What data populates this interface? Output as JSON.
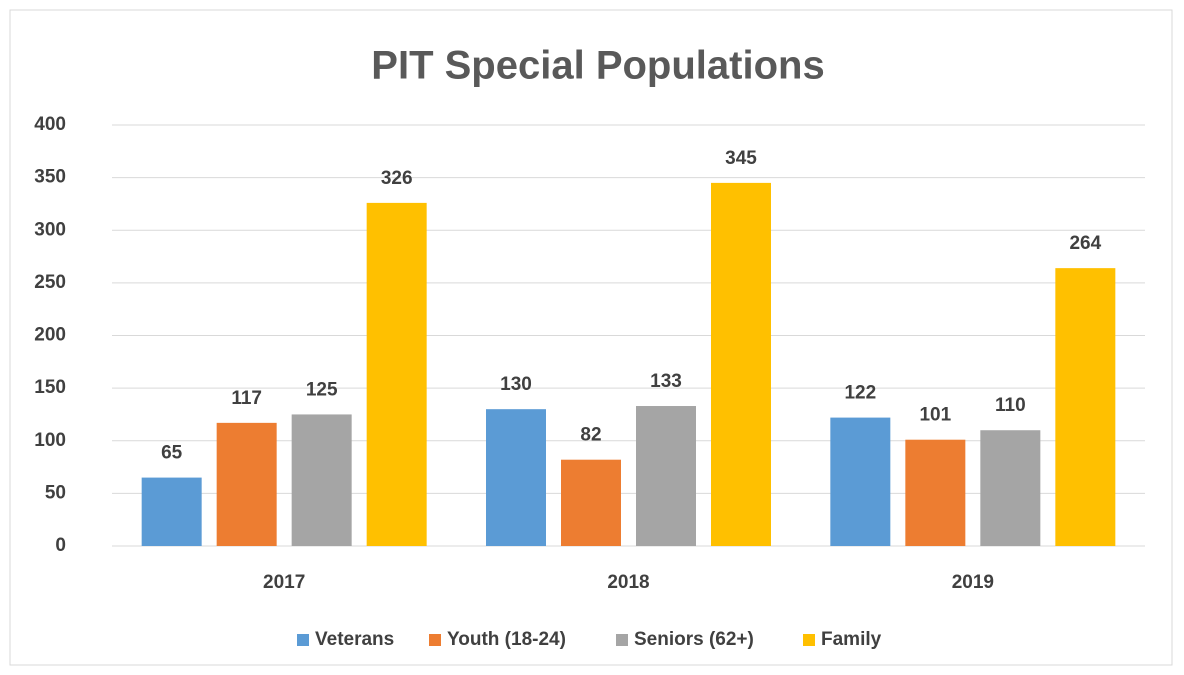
{
  "chart_data": {
    "type": "bar",
    "title": "PIT Special Populations",
    "categories": [
      "2017",
      "2018",
      "2019"
    ],
    "series": [
      {
        "name": "Veterans",
        "color": "#5b9bd5",
        "values": [
          65,
          130,
          122
        ]
      },
      {
        "name": "Youth (18-24)",
        "color": "#ed7d31",
        "values": [
          117,
          82,
          101
        ]
      },
      {
        "name": "Seniors (62+)",
        "color": "#a5a5a5",
        "values": [
          125,
          133,
          110
        ]
      },
      {
        "name": "Family",
        "color": "#ffc000",
        "values": [
          326,
          345,
          264
        ]
      }
    ],
    "ylim": [
      0,
      400
    ],
    "yticks": [
      0,
      50,
      100,
      150,
      200,
      250,
      300,
      350,
      400
    ],
    "grid": true,
    "legend": "bottom"
  }
}
